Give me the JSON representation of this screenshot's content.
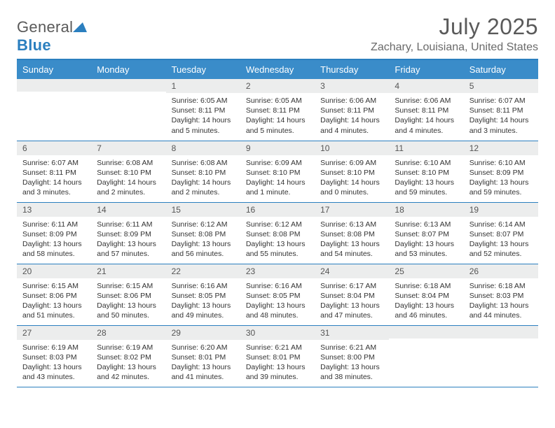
{
  "logo": {
    "name1": "General",
    "name2": "Blue"
  },
  "header": {
    "title": "July 2025",
    "location": "Zachary, Louisiana, United States"
  },
  "colors": {
    "header_bg": "#3a8cc9",
    "border": "#2b7fbf",
    "daynum_bg": "#eceded"
  },
  "daynames": [
    "Sunday",
    "Monday",
    "Tuesday",
    "Wednesday",
    "Thursday",
    "Friday",
    "Saturday"
  ],
  "weeks": [
    [
      {
        "n": "",
        "sr": "",
        "ss": "",
        "dl": ""
      },
      {
        "n": "",
        "sr": "",
        "ss": "",
        "dl": ""
      },
      {
        "n": "1",
        "sr": "Sunrise: 6:05 AM",
        "ss": "Sunset: 8:11 PM",
        "dl": "Daylight: 14 hours and 5 minutes."
      },
      {
        "n": "2",
        "sr": "Sunrise: 6:05 AM",
        "ss": "Sunset: 8:11 PM",
        "dl": "Daylight: 14 hours and 5 minutes."
      },
      {
        "n": "3",
        "sr": "Sunrise: 6:06 AM",
        "ss": "Sunset: 8:11 PM",
        "dl": "Daylight: 14 hours and 4 minutes."
      },
      {
        "n": "4",
        "sr": "Sunrise: 6:06 AM",
        "ss": "Sunset: 8:11 PM",
        "dl": "Daylight: 14 hours and 4 minutes."
      },
      {
        "n": "5",
        "sr": "Sunrise: 6:07 AM",
        "ss": "Sunset: 8:11 PM",
        "dl": "Daylight: 14 hours and 3 minutes."
      }
    ],
    [
      {
        "n": "6",
        "sr": "Sunrise: 6:07 AM",
        "ss": "Sunset: 8:11 PM",
        "dl": "Daylight: 14 hours and 3 minutes."
      },
      {
        "n": "7",
        "sr": "Sunrise: 6:08 AM",
        "ss": "Sunset: 8:10 PM",
        "dl": "Daylight: 14 hours and 2 minutes."
      },
      {
        "n": "8",
        "sr": "Sunrise: 6:08 AM",
        "ss": "Sunset: 8:10 PM",
        "dl": "Daylight: 14 hours and 2 minutes."
      },
      {
        "n": "9",
        "sr": "Sunrise: 6:09 AM",
        "ss": "Sunset: 8:10 PM",
        "dl": "Daylight: 14 hours and 1 minute."
      },
      {
        "n": "10",
        "sr": "Sunrise: 6:09 AM",
        "ss": "Sunset: 8:10 PM",
        "dl": "Daylight: 14 hours and 0 minutes."
      },
      {
        "n": "11",
        "sr": "Sunrise: 6:10 AM",
        "ss": "Sunset: 8:10 PM",
        "dl": "Daylight: 13 hours and 59 minutes."
      },
      {
        "n": "12",
        "sr": "Sunrise: 6:10 AM",
        "ss": "Sunset: 8:09 PM",
        "dl": "Daylight: 13 hours and 59 minutes."
      }
    ],
    [
      {
        "n": "13",
        "sr": "Sunrise: 6:11 AM",
        "ss": "Sunset: 8:09 PM",
        "dl": "Daylight: 13 hours and 58 minutes."
      },
      {
        "n": "14",
        "sr": "Sunrise: 6:11 AM",
        "ss": "Sunset: 8:09 PM",
        "dl": "Daylight: 13 hours and 57 minutes."
      },
      {
        "n": "15",
        "sr": "Sunrise: 6:12 AM",
        "ss": "Sunset: 8:08 PM",
        "dl": "Daylight: 13 hours and 56 minutes."
      },
      {
        "n": "16",
        "sr": "Sunrise: 6:12 AM",
        "ss": "Sunset: 8:08 PM",
        "dl": "Daylight: 13 hours and 55 minutes."
      },
      {
        "n": "17",
        "sr": "Sunrise: 6:13 AM",
        "ss": "Sunset: 8:08 PM",
        "dl": "Daylight: 13 hours and 54 minutes."
      },
      {
        "n": "18",
        "sr": "Sunrise: 6:13 AM",
        "ss": "Sunset: 8:07 PM",
        "dl": "Daylight: 13 hours and 53 minutes."
      },
      {
        "n": "19",
        "sr": "Sunrise: 6:14 AM",
        "ss": "Sunset: 8:07 PM",
        "dl": "Daylight: 13 hours and 52 minutes."
      }
    ],
    [
      {
        "n": "20",
        "sr": "Sunrise: 6:15 AM",
        "ss": "Sunset: 8:06 PM",
        "dl": "Daylight: 13 hours and 51 minutes."
      },
      {
        "n": "21",
        "sr": "Sunrise: 6:15 AM",
        "ss": "Sunset: 8:06 PM",
        "dl": "Daylight: 13 hours and 50 minutes."
      },
      {
        "n": "22",
        "sr": "Sunrise: 6:16 AM",
        "ss": "Sunset: 8:05 PM",
        "dl": "Daylight: 13 hours and 49 minutes."
      },
      {
        "n": "23",
        "sr": "Sunrise: 6:16 AM",
        "ss": "Sunset: 8:05 PM",
        "dl": "Daylight: 13 hours and 48 minutes."
      },
      {
        "n": "24",
        "sr": "Sunrise: 6:17 AM",
        "ss": "Sunset: 8:04 PM",
        "dl": "Daylight: 13 hours and 47 minutes."
      },
      {
        "n": "25",
        "sr": "Sunrise: 6:18 AM",
        "ss": "Sunset: 8:04 PM",
        "dl": "Daylight: 13 hours and 46 minutes."
      },
      {
        "n": "26",
        "sr": "Sunrise: 6:18 AM",
        "ss": "Sunset: 8:03 PM",
        "dl": "Daylight: 13 hours and 44 minutes."
      }
    ],
    [
      {
        "n": "27",
        "sr": "Sunrise: 6:19 AM",
        "ss": "Sunset: 8:03 PM",
        "dl": "Daylight: 13 hours and 43 minutes."
      },
      {
        "n": "28",
        "sr": "Sunrise: 6:19 AM",
        "ss": "Sunset: 8:02 PM",
        "dl": "Daylight: 13 hours and 42 minutes."
      },
      {
        "n": "29",
        "sr": "Sunrise: 6:20 AM",
        "ss": "Sunset: 8:01 PM",
        "dl": "Daylight: 13 hours and 41 minutes."
      },
      {
        "n": "30",
        "sr": "Sunrise: 6:21 AM",
        "ss": "Sunset: 8:01 PM",
        "dl": "Daylight: 13 hours and 39 minutes."
      },
      {
        "n": "31",
        "sr": "Sunrise: 6:21 AM",
        "ss": "Sunset: 8:00 PM",
        "dl": "Daylight: 13 hours and 38 minutes."
      },
      {
        "n": "",
        "sr": "",
        "ss": "",
        "dl": ""
      },
      {
        "n": "",
        "sr": "",
        "ss": "",
        "dl": ""
      }
    ]
  ]
}
